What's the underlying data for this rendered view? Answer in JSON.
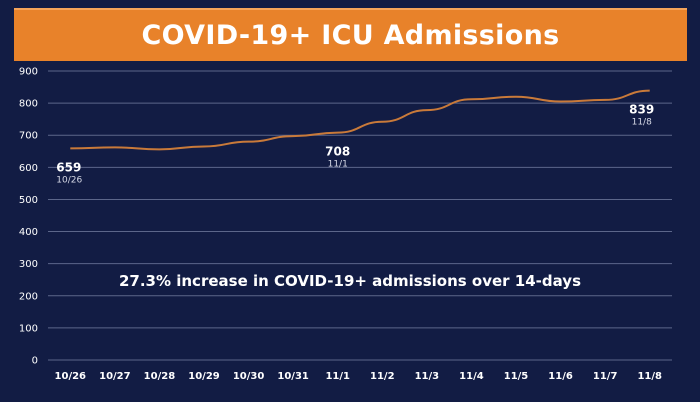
{
  "title": "COVID-19+ ICU Admissions",
  "annotation": "27.3% increase in COVID-19+ admissions over 14-days",
  "colors": {
    "background": "#121c44",
    "title_bar": "#e8822a",
    "series_line": "#c97a3a",
    "grid": "#9aa3c4"
  },
  "chart_data": {
    "type": "line",
    "categories": [
      "10/26",
      "10/27",
      "10/28",
      "10/29",
      "10/30",
      "10/31",
      "11/1",
      "11/2",
      "11/3",
      "11/4",
      "11/5",
      "11/6",
      "11/7",
      "11/8"
    ],
    "values": [
      659,
      662,
      656,
      665,
      680,
      697,
      708,
      742,
      778,
      812,
      820,
      805,
      810,
      839
    ],
    "ylim": [
      0,
      900
    ],
    "yticks": [
      0,
      100,
      200,
      300,
      400,
      500,
      600,
      700,
      800,
      900
    ],
    "grid": true,
    "legend": "none",
    "point_labels": [
      {
        "index": 0,
        "value": "659",
        "date": "10/26"
      },
      {
        "index": 6,
        "value": "708",
        "date": "11/1"
      },
      {
        "index": 13,
        "value": "839",
        "date": "11/8"
      }
    ]
  }
}
